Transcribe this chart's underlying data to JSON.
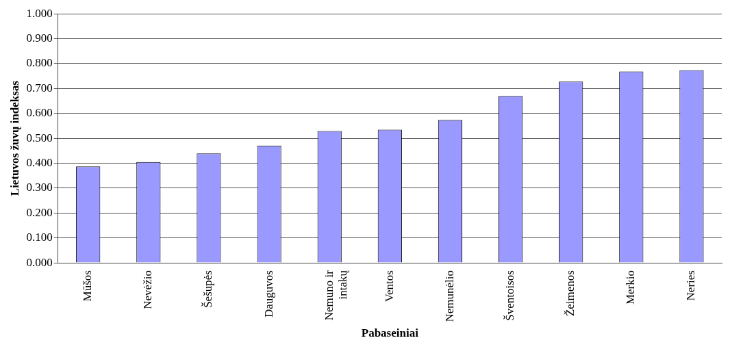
{
  "chart_data": {
    "type": "bar",
    "xlabel": "Pabaseiniai",
    "ylabel": "Lietuvos žuvų indeksas",
    "categories": [
      "Mūšos",
      "Nevėžio",
      "Šešupės",
      "Dauguvos",
      "Nemuno ir intakų",
      "Ventos",
      "Nemunėlio",
      "Šventoisos",
      "Žeimenos",
      "Merkio",
      "Neries"
    ],
    "values": [
      0.387,
      0.405,
      0.439,
      0.471,
      0.529,
      0.535,
      0.574,
      0.67,
      0.728,
      0.768,
      0.774
    ],
    "color": "#9999ff",
    "ylim": [
      0,
      1
    ],
    "yticks": [
      {
        "value": 0,
        "label": "0.000"
      },
      {
        "value": 0.1,
        "label": "0.100"
      },
      {
        "value": 0.2,
        "label": "0.200"
      },
      {
        "value": 0.3,
        "label": "0.300"
      },
      {
        "value": 0.4,
        "label": "0.400"
      },
      {
        "value": 0.5,
        "label": "0.500"
      },
      {
        "value": 0.6,
        "label": "0.600"
      },
      {
        "value": 0.7,
        "label": "0.700"
      },
      {
        "value": 0.8,
        "label": "0.800"
      },
      {
        "value": 0.9,
        "label": "0.900"
      },
      {
        "value": 1,
        "label": "1.000"
      }
    ],
    "grid": "y",
    "legend": false
  }
}
